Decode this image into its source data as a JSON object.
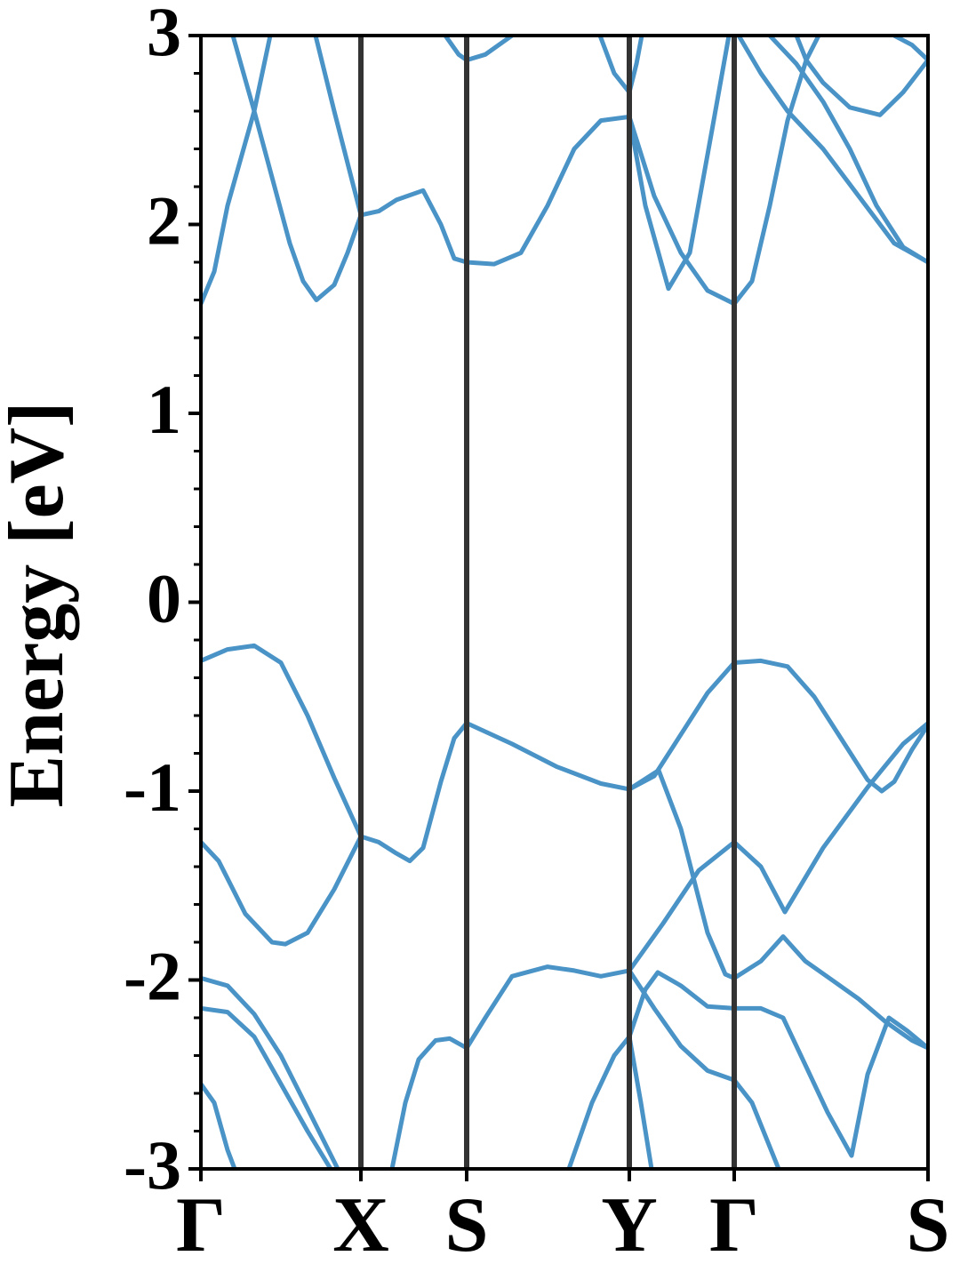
{
  "chart_data": {
    "type": "line",
    "y_label": "Energy [eV]",
    "xlim": [
      0,
      8.18
    ],
    "xticks": [
      {
        "value": 0,
        "label": "Γ"
      },
      {
        "value": 1.8,
        "label": "X"
      },
      {
        "value": 2.99,
        "label": "S"
      },
      {
        "value": 4.82,
        "label": "Y"
      },
      {
        "value": 6.0,
        "label": "Γ"
      },
      {
        "value": 8.18,
        "label": "S"
      }
    ],
    "ylim": [
      -3,
      3
    ],
    "yticks": [
      -3,
      -2,
      -1,
      0,
      1,
      2,
      3
    ],
    "yminorticks": [
      -2.8,
      -2.6,
      -2.4,
      -2.2,
      -1.8,
      -1.6,
      -1.4,
      -1.2,
      -0.8,
      -0.6,
      -0.4,
      -0.2,
      0.2,
      0.4,
      0.6,
      0.8,
      1.2,
      1.4,
      1.6,
      1.8,
      2.2,
      2.4,
      2.6,
      2.8
    ],
    "symmetry_lines": true,
    "color": "#4a93c7",
    "series": [
      {
        "x": [
          0,
          0.3,
          0.6,
          0.9,
          1.2,
          1.5,
          1.8,
          2.0,
          2.2,
          2.35,
          2.5,
          2.7,
          2.85,
          2.99,
          3.5,
          4.0,
          4.5,
          4.82,
          5.1,
          5.4,
          5.7,
          6.0,
          6.3,
          6.6,
          6.9,
          7.2,
          7.5,
          7.66,
          7.8,
          8.0,
          8.18
        ],
        "values": [
          -0.31,
          -0.25,
          -0.23,
          -0.32,
          -0.6,
          -0.93,
          -1.24,
          -1.27,
          -1.33,
          -1.37,
          -1.3,
          -0.95,
          -0.72,
          -0.64,
          -0.75,
          -0.87,
          -0.96,
          -0.99,
          -0.92,
          -0.7,
          -0.48,
          -0.32,
          -0.31,
          -0.34,
          -0.5,
          -0.72,
          -0.94,
          -1.0,
          -0.95,
          -0.78,
          -0.65
        ]
      },
      {
        "x": [
          0,
          0.2,
          0.5,
          0.8,
          0.95,
          1.2,
          1.5,
          1.8
        ],
        "values": [
          -1.27,
          -1.37,
          -1.65,
          -1.8,
          -1.81,
          -1.75,
          -1.52,
          -1.24
        ]
      },
      {
        "x": [
          2.15,
          2.3,
          2.45,
          2.64,
          2.8,
          2.99,
          3.2,
          3.5,
          3.9,
          4.2,
          4.5,
          4.82,
          5.2,
          5.6,
          6.0,
          6.3,
          6.57,
          7.0,
          7.5,
          7.9,
          8.18
        ],
        "values": [
          -3.0,
          -2.65,
          -2.42,
          -2.32,
          -2.31,
          -2.36,
          -2.2,
          -1.98,
          -1.93,
          -1.95,
          -1.98,
          -1.95,
          -1.7,
          -1.42,
          -1.27,
          -1.4,
          -1.64,
          -1.3,
          -0.98,
          -0.75,
          -0.64
        ]
      },
      {
        "x": [
          4.82,
          5.15,
          5.4,
          5.7,
          5.9,
          6.0,
          6.3,
          6.55,
          6.8,
          7.1,
          7.4,
          7.7,
          8.0,
          8.18
        ],
        "values": [
          -0.99,
          -0.89,
          -1.2,
          -1.75,
          -1.97,
          -1.99,
          -1.9,
          -1.77,
          -1.9,
          -2.0,
          -2.1,
          -2.22,
          -2.32,
          -2.36
        ]
      },
      {
        "x": [
          4.14,
          4.4,
          4.65,
          4.82,
          5.0,
          5.14,
          5.4,
          5.7,
          6.0,
          6.3,
          6.55,
          6.8,
          7.05,
          7.32,
          7.5,
          7.74,
          7.95,
          8.18
        ],
        "values": [
          -3.0,
          -2.65,
          -2.4,
          -2.3,
          -2.05,
          -1.96,
          -2.03,
          -2.14,
          -2.15,
          -2.15,
          -2.2,
          -2.45,
          -2.7,
          -2.93,
          -2.5,
          -2.2,
          -2.27,
          -2.36
        ]
      },
      {
        "x": [
          4.82,
          4.95,
          5.07
        ],
        "values": [
          -2.3,
          -2.65,
          -3.0
        ]
      },
      {
        "x": [
          4.82,
          5.1,
          5.4,
          5.7,
          6.0,
          6.2,
          6.5
        ],
        "values": [
          -1.95,
          -2.15,
          -2.35,
          -2.48,
          -2.53,
          -2.65,
          -3.0
        ]
      },
      {
        "x": [
          0,
          0.3,
          0.6,
          0.9,
          1.2,
          1.54
        ],
        "values": [
          -1.99,
          -2.03,
          -2.18,
          -2.4,
          -2.68,
          -3.0
        ]
      },
      {
        "x": [
          0,
          0.3,
          0.6,
          0.9,
          1.2,
          1.46
        ],
        "values": [
          -2.15,
          -2.17,
          -2.3,
          -2.55,
          -2.8,
          -3.0
        ]
      },
      {
        "x": [
          0,
          0.15,
          0.3,
          0.38
        ],
        "values": [
          -2.55,
          -2.65,
          -2.9,
          -3.0
        ]
      },
      {
        "x": [
          0,
          0.15,
          0.3,
          0.45,
          0.6,
          0.78
        ],
        "values": [
          1.58,
          1.75,
          2.1,
          2.35,
          2.6,
          3.0
        ]
      },
      {
        "x": [
          0.36,
          0.45,
          0.6,
          0.8,
          1.0,
          1.15,
          1.3,
          1.5,
          1.65,
          1.8,
          2.0,
          2.2,
          2.5,
          2.7,
          2.85,
          2.99,
          3.3,
          3.6,
          3.9,
          4.2,
          4.5,
          4.82
        ],
        "values": [
          3.0,
          2.85,
          2.6,
          2.25,
          1.9,
          1.7,
          1.6,
          1.68,
          1.85,
          2.05,
          2.07,
          2.13,
          2.18,
          2.0,
          1.82,
          1.8,
          1.79,
          1.85,
          2.1,
          2.4,
          2.55,
          2.57
        ]
      },
      {
        "x": [
          1.29,
          1.5,
          1.8
        ],
        "values": [
          3.0,
          2.6,
          2.05
        ]
      },
      {
        "x": [
          2.75,
          2.9,
          2.99,
          3.2,
          3.5
        ],
        "values": [
          3.0,
          2.9,
          2.87,
          2.9,
          3.0
        ]
      },
      {
        "x": [
          4.49,
          4.65,
          4.82,
          4.9,
          4.96
        ],
        "values": [
          3.0,
          2.8,
          2.7,
          2.85,
          3.0
        ]
      },
      {
        "x": [
          4.82,
          5.0,
          5.26,
          5.5,
          5.75,
          5.94
        ],
        "values": [
          2.57,
          2.1,
          1.66,
          1.85,
          2.5,
          3.0
        ]
      },
      {
        "x": [
          4.82,
          5.1,
          5.4,
          5.7,
          6.0,
          6.2,
          6.4,
          6.6,
          6.81,
          6.95
        ],
        "values": [
          2.57,
          2.15,
          1.85,
          1.65,
          1.58,
          1.7,
          2.1,
          2.55,
          2.87,
          3.0
        ]
      },
      {
        "x": [
          6.7,
          6.81,
          7.0,
          7.3,
          7.64,
          7.9,
          8.18
        ],
        "values": [
          3.0,
          2.87,
          2.75,
          2.62,
          2.58,
          2.7,
          2.87
        ]
      },
      {
        "x": [
          6.05,
          6.3,
          6.6,
          7.0,
          7.4,
          7.8,
          8.18
        ],
        "values": [
          3.0,
          2.8,
          2.6,
          2.4,
          2.15,
          1.9,
          1.8
        ]
      },
      {
        "x": [
          6.4,
          6.7,
          7.0,
          7.3,
          7.6,
          7.9,
          8.18
        ],
        "values": [
          3.0,
          2.85,
          2.65,
          2.4,
          2.1,
          1.88,
          1.8
        ]
      },
      {
        "x": [
          7.8,
          8.0,
          8.18
        ],
        "values": [
          3.0,
          2.95,
          2.87
        ]
      }
    ]
  }
}
